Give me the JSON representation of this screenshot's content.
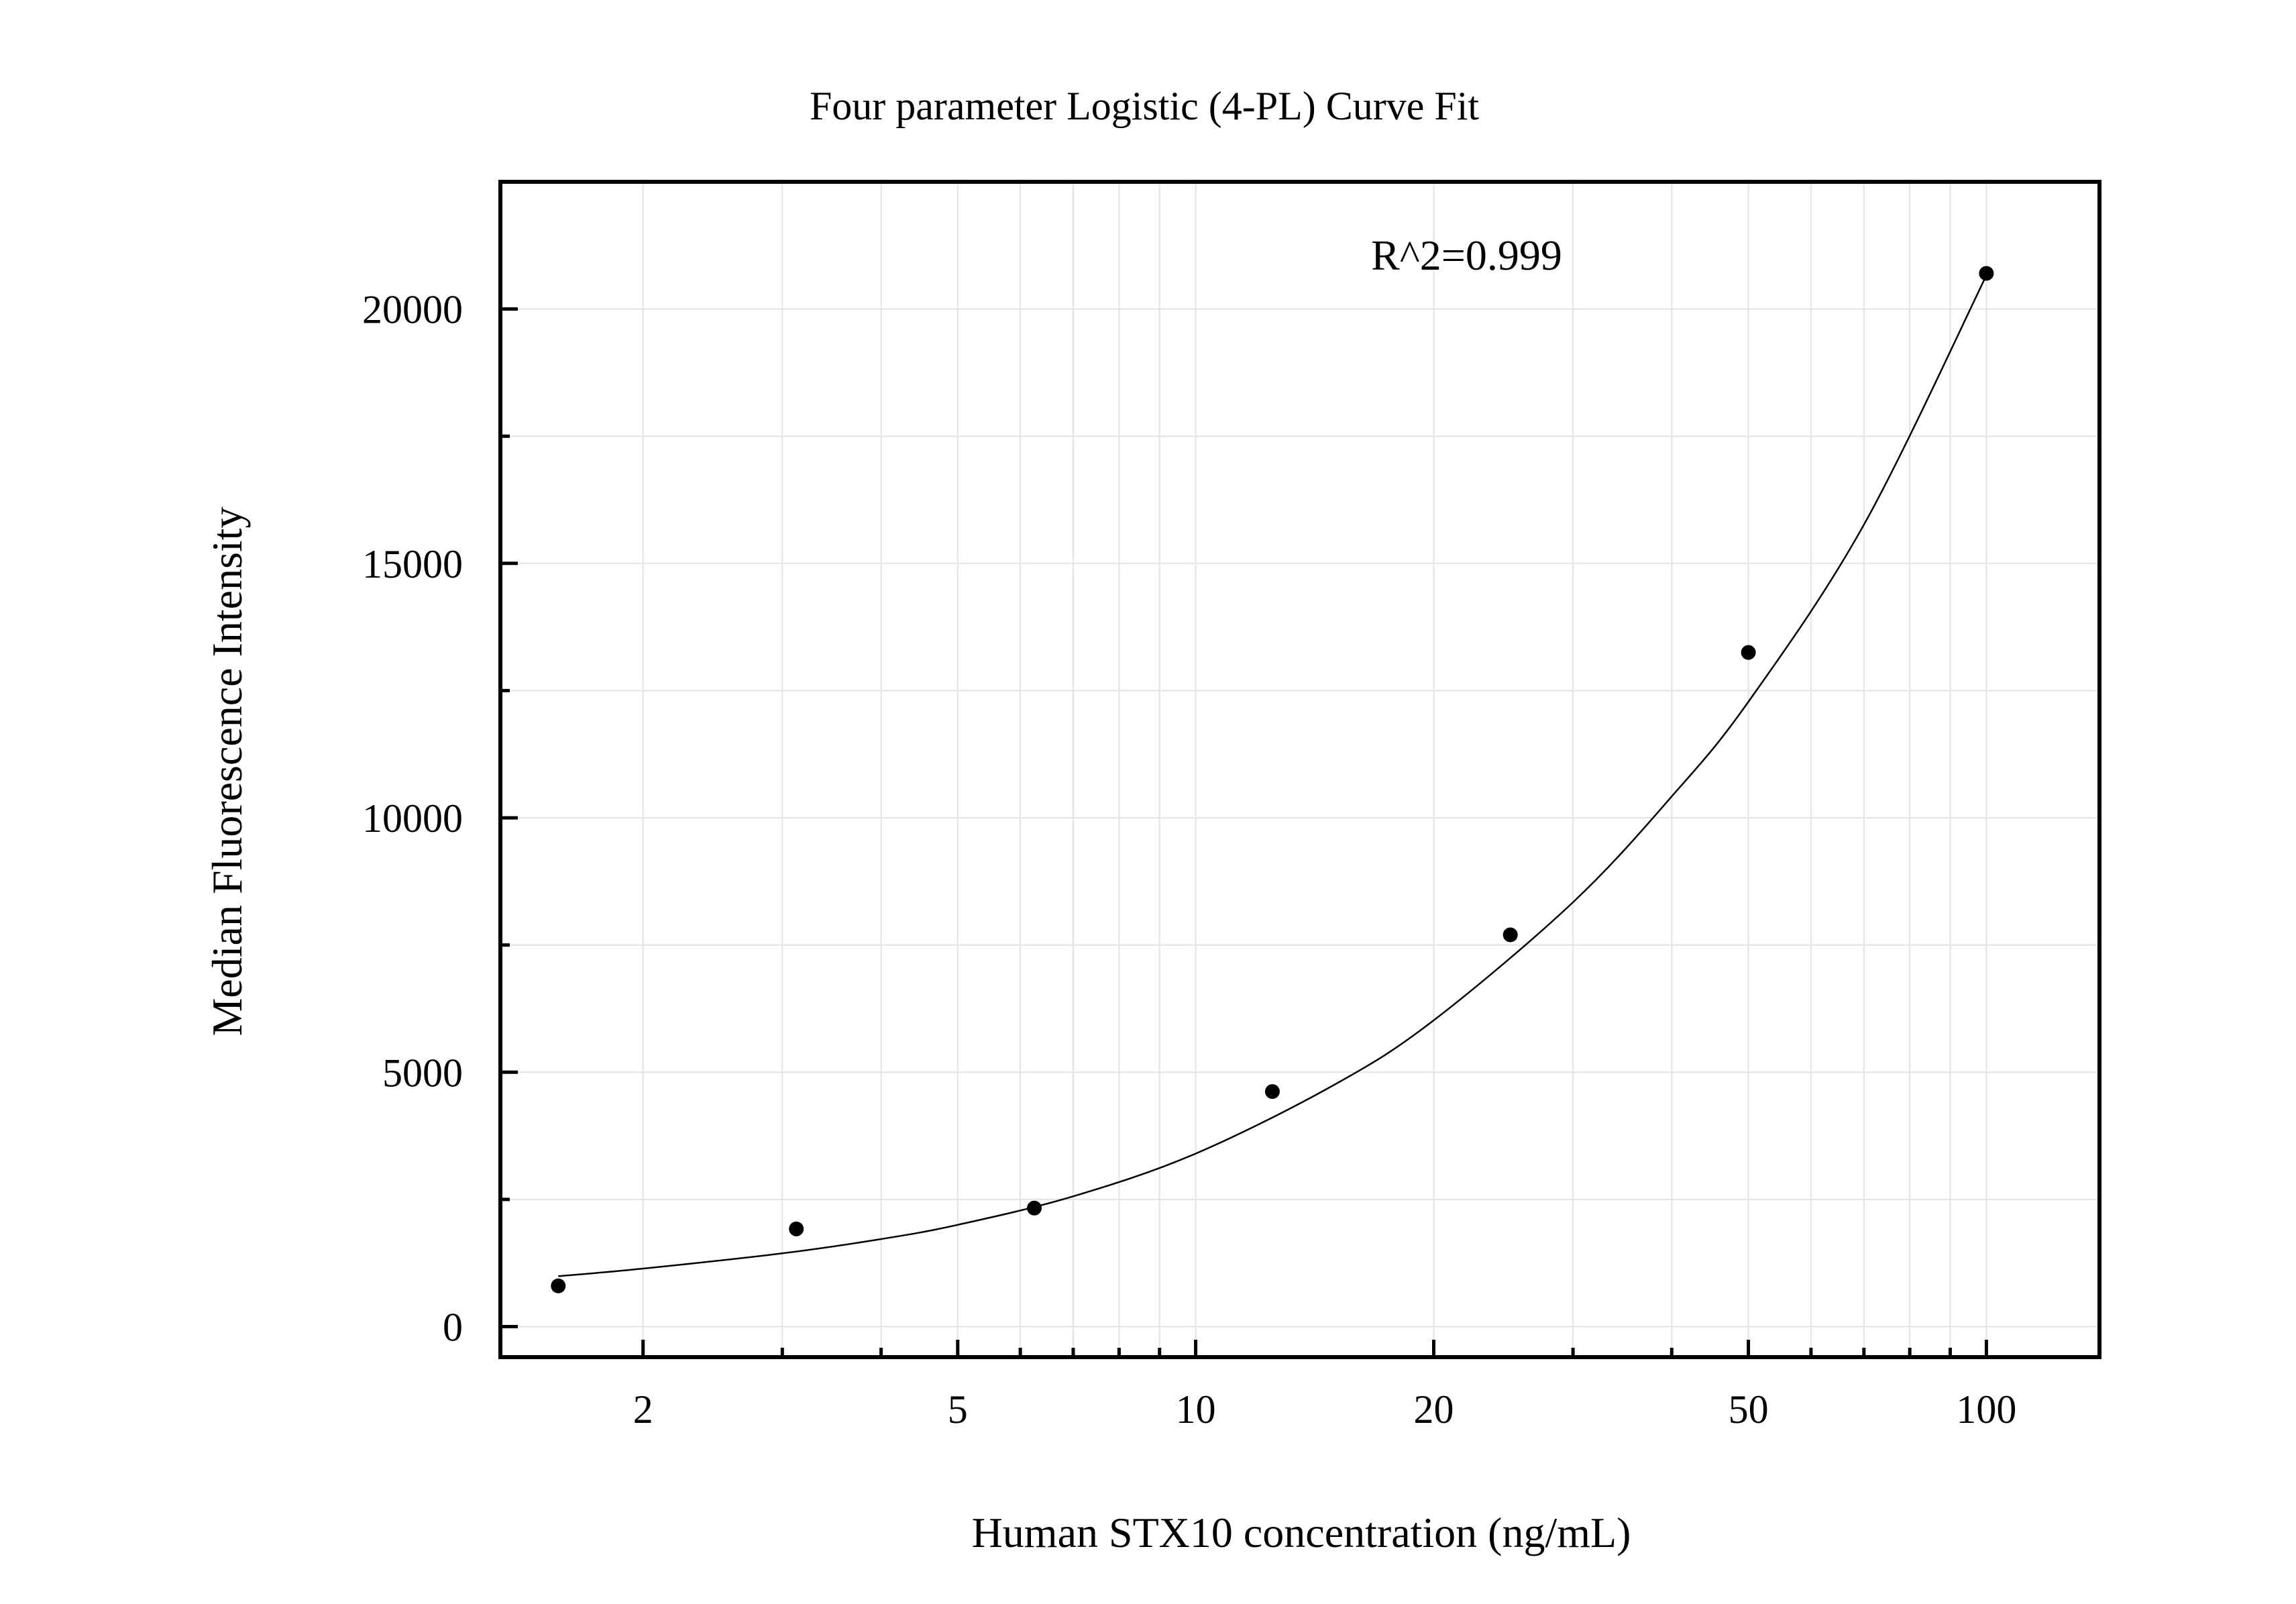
{
  "chart_data": {
    "type": "scatter",
    "title": "Four parameter Logistic (4-PL) Curve Fit",
    "xlabel": "Human STX10 concentration (ng/mL)",
    "ylabel": "Median Fluorescence Intensity",
    "x_scale": "log",
    "xlim": [
      1.32,
      139
    ],
    "ylim": [
      -600,
      22500
    ],
    "x_ticks": [
      2,
      5,
      10,
      20,
      50,
      100
    ],
    "x_tick_labels": [
      "2",
      "5",
      "10",
      "20",
      "50",
      "100"
    ],
    "y_ticks": [
      0,
      5000,
      10000,
      15000,
      20000
    ],
    "y_tick_labels": [
      "0",
      "5000",
      "10000",
      "15000",
      "20000"
    ],
    "grid": true,
    "annotation": "R^2=0.999",
    "points": {
      "x": [
        1.5625,
        3.125,
        6.25,
        12.5,
        25,
        50,
        100
      ],
      "y": [
        800,
        1920,
        2330,
        4620,
        7700,
        13250,
        20700
      ]
    },
    "fit_curve": {
      "x": [
        1.5625,
        2,
        3,
        4,
        5,
        7,
        10,
        15,
        20,
        30,
        40,
        50,
        70,
        100
      ],
      "y": [
        990,
        1140,
        1440,
        1720,
        2000,
        2560,
        3400,
        4760,
        6020,
        8340,
        10420,
        12280,
        15760,
        20660
      ]
    }
  }
}
